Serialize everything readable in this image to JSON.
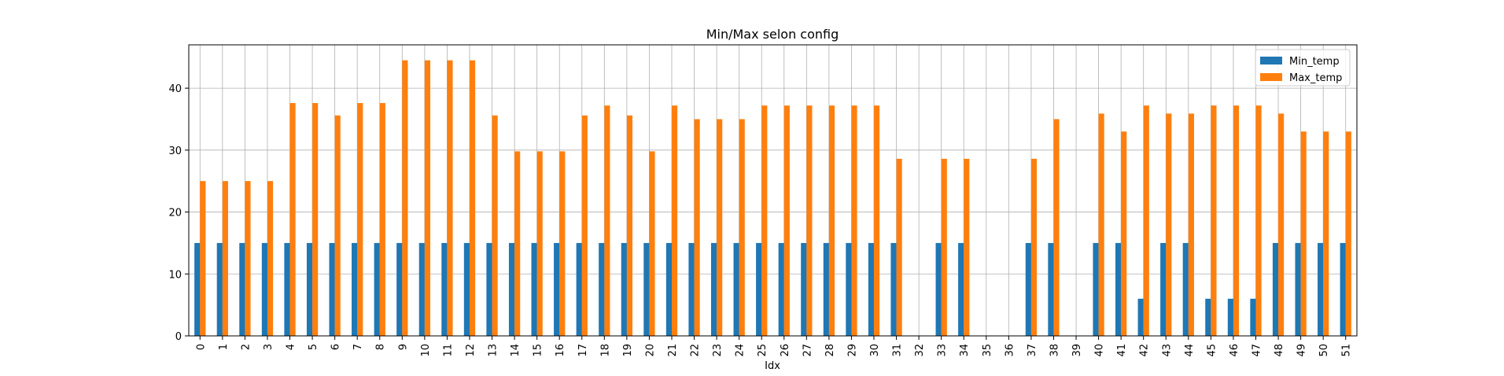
{
  "chart_data": {
    "type": "bar",
    "title": "Min/Max selon config",
    "xlabel": "Idx",
    "ylabel": "",
    "ylim": [
      0,
      47
    ],
    "yticks": [
      0,
      10,
      20,
      30,
      40
    ],
    "grid": true,
    "legend_position": "top-right",
    "categories": [
      "0",
      "1",
      "2",
      "3",
      "4",
      "5",
      "6",
      "7",
      "8",
      "9",
      "10",
      "11",
      "12",
      "13",
      "14",
      "15",
      "16",
      "17",
      "18",
      "19",
      "20",
      "21",
      "22",
      "23",
      "24",
      "25",
      "26",
      "27",
      "28",
      "29",
      "30",
      "31",
      "32",
      "33",
      "34",
      "35",
      "36",
      "37",
      "38",
      "39",
      "40",
      "41",
      "42",
      "43",
      "44",
      "45",
      "46",
      "47",
      "48",
      "49",
      "50",
      "51"
    ],
    "series": [
      {
        "name": "Min_temp",
        "color": "#1f77b4",
        "values": [
          15,
          15,
          15,
          15,
          15,
          15,
          15,
          15,
          15,
          15,
          15,
          15,
          15,
          15,
          15,
          15,
          15,
          15,
          15,
          15,
          15,
          15,
          15,
          15,
          15,
          15,
          15,
          15,
          15,
          15,
          15,
          15,
          0,
          15,
          15,
          0,
          0,
          15,
          15,
          0,
          15,
          15,
          6,
          15,
          15,
          6,
          6,
          6,
          15,
          15,
          15,
          15
        ]
      },
      {
        "name": "Max_temp",
        "color": "#ff7f0e",
        "values": [
          25,
          25,
          25,
          25,
          37.6,
          37.6,
          35.6,
          37.6,
          37.6,
          44.5,
          44.5,
          44.5,
          44.5,
          35.6,
          29.8,
          29.8,
          29.8,
          35.6,
          37.2,
          35.6,
          29.8,
          37.2,
          35,
          35,
          35,
          37.2,
          37.2,
          37.2,
          37.2,
          37.2,
          37.2,
          28.6,
          0,
          28.6,
          28.6,
          0,
          0,
          28.6,
          35,
          0,
          35.9,
          33,
          37.2,
          35.9,
          35.9,
          37.2,
          37.2,
          37.2,
          35.9,
          33,
          33,
          33
        ]
      }
    ]
  }
}
